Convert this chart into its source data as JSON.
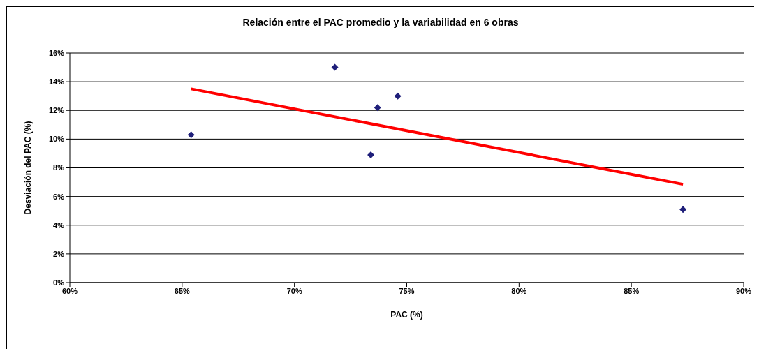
{
  "chart_data": {
    "type": "scatter",
    "title": "Relación entre el PAC promedio y la variabilidad en 6 obras",
    "xlabel": "PAC (%)",
    "ylabel": "Desviación del PAC (%)",
    "xlim": [
      60,
      90
    ],
    "xticks": [
      {
        "value": 60,
        "label": "60%"
      },
      {
        "value": 65,
        "label": "65%"
      },
      {
        "value": 70,
        "label": "70%"
      },
      {
        "value": 75,
        "label": "75%"
      },
      {
        "value": 80,
        "label": "80%"
      },
      {
        "value": 85,
        "label": "85%"
      },
      {
        "value": 90,
        "label": "90%"
      }
    ],
    "ylim": [
      0,
      16
    ],
    "yticks": [
      {
        "value": 0,
        "label": "0%"
      },
      {
        "value": 2,
        "label": "2%"
      },
      {
        "value": 4,
        "label": "4%"
      },
      {
        "value": 6,
        "label": "6%"
      },
      {
        "value": 8,
        "label": "8%"
      },
      {
        "value": 10,
        "label": "10%"
      },
      {
        "value": 12,
        "label": "12%"
      },
      {
        "value": 14,
        "label": "14%"
      },
      {
        "value": 16,
        "label": "16%"
      }
    ],
    "grid": "y",
    "marker": "diamond",
    "legend": false,
    "series": [
      {
        "color": "#1f1f7a",
        "x": [
          65.4,
          71.8,
          73.4,
          73.7,
          74.6,
          87.3
        ],
        "values": [
          10.3,
          15.0,
          8.9,
          12.2,
          13.0,
          5.1
        ]
      },
      {
        "type": "line",
        "color": "#ff0000",
        "marker": "none",
        "x": [
          65.4,
          87.3
        ],
        "values": [
          13.5,
          6.85
        ]
      }
    ]
  }
}
